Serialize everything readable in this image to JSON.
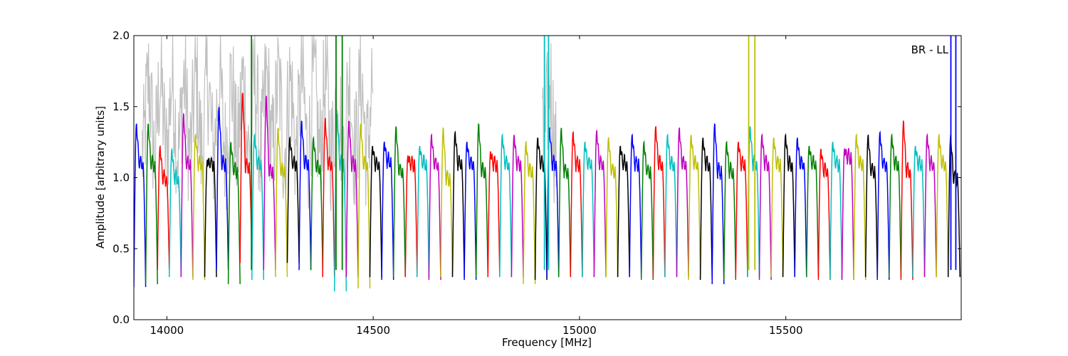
{
  "chart_data": {
    "type": "line",
    "title": "",
    "annotation": "BR - LL",
    "xlabel": "Frequency [MHz]",
    "ylabel": "Amplitude [arbitrary units]",
    "xlim": [
      13920,
      15925
    ],
    "ylim": [
      0.0,
      2.0
    ],
    "xticks": [
      14000,
      14500,
      15000,
      15500
    ],
    "yticks": [
      0.0,
      0.5,
      1.0,
      1.5,
      2.0
    ],
    "xtick_labels": [
      "14000",
      "14500",
      "15000",
      "15500"
    ],
    "ytick_labels": [
      "0.0",
      "0.5",
      "1.0",
      "1.5",
      "2.0"
    ],
    "grid": false,
    "legend": "none",
    "palette": [
      "#0000ff",
      "#008000",
      "#ff0000",
      "#00bfbf",
      "#bf00bf",
      "#bfbf00",
      "#000000"
    ],
    "noise_color": "#c0c0c0",
    "channel_width_mhz": 28.6,
    "channels": {
      "start": 13920,
      "count": 70,
      "peaks": [
        1.38,
        1.38,
        1.22,
        1.2,
        1.45,
        1.3,
        1.12,
        1.5,
        1.25,
        1.6,
        1.3,
        1.58,
        1.35,
        1.28,
        1.4,
        1.28,
        1.42,
        1.45,
        1.4,
        1.38,
        1.22,
        1.25,
        1.36,
        1.15,
        1.22,
        1.3,
        1.35,
        1.32,
        1.25,
        1.38,
        1.18,
        1.3,
        1.3,
        1.25,
        1.28,
        1.35,
        1.35,
        1.32,
        1.25,
        1.33,
        1.28,
        1.22,
        1.3,
        1.25,
        1.36,
        1.3,
        1.35,
        1.3,
        1.28,
        1.38,
        1.25,
        1.25,
        1.36,
        1.3,
        1.28,
        1.3,
        1.28,
        1.22,
        1.2,
        1.25,
        1.2,
        1.3,
        1.3,
        1.32,
        1.3,
        1.4,
        1.22,
        1.3,
        1.3,
        1.3
      ],
      "mids": [
        1.1,
        1.1,
        1.0,
        1.0,
        1.1,
        1.1,
        1.1,
        1.1,
        1.05,
        1.08,
        1.1,
        1.05,
        1.05,
        1.1,
        1.1,
        1.08,
        1.1,
        1.1,
        1.1,
        1.1,
        1.1,
        1.12,
        1.05,
        1.1,
        1.1,
        1.1,
        1.0,
        1.1,
        1.1,
        1.05,
        1.1,
        1.1,
        1.1,
        1.05,
        1.1,
        1.1,
        1.05,
        1.1,
        1.1,
        1.1,
        1.05,
        1.1,
        1.1,
        1.05,
        1.1,
        1.1,
        1.1,
        1.1,
        1.1,
        1.05,
        1.05,
        1.1,
        1.1,
        1.1,
        1.1,
        1.1,
        1.1,
        1.1,
        1.05,
        1.1,
        1.15,
        1.1,
        1.05,
        1.1,
        1.1,
        1.05,
        1.1,
        1.1,
        1.1,
        1.0
      ],
      "troughs": [
        0.23,
        0.25,
        0.35,
        0.3,
        0.3,
        0.28,
        0.3,
        0.35,
        0.25,
        0.4,
        0.28,
        0.35,
        0.3,
        0.4,
        0.35,
        0.35,
        0.3,
        0.2,
        0.3,
        0.22,
        0.3,
        0.28,
        0.3,
        0.3,
        0.3,
        0.28,
        0.3,
        0.3,
        0.28,
        0.3,
        0.3,
        0.3,
        0.3,
        0.25,
        0.28,
        0.3,
        0.3,
        0.3,
        0.3,
        0.3,
        0.3,
        0.3,
        0.3,
        0.28,
        0.3,
        0.3,
        0.3,
        0.28,
        0.28,
        0.25,
        0.28,
        0.3,
        0.3,
        0.28,
        0.3,
        0.3,
        0.3,
        0.3,
        0.28,
        0.28,
        0.28,
        0.28,
        0.3,
        0.28,
        0.3,
        0.28,
        0.3,
        0.3,
        0.3,
        0.3
      ]
    },
    "noise_region": {
      "x_range": [
        13940,
        14500
      ],
      "max": 2.0
    },
    "noise_region_2": {
      "x_range": [
        14910,
        14945
      ],
      "max": 2.0
    },
    "spikes": [
      {
        "x": 14205,
        "color": "#008000",
        "top": 2.0
      },
      {
        "x": 14410,
        "color": "#008000",
        "top": 2.0
      },
      {
        "x": 14425,
        "color": "#008000",
        "top": 2.0
      },
      {
        "x": 14915,
        "color": "#00bfbf",
        "top": 2.0
      },
      {
        "x": 14925,
        "color": "#00bfbf",
        "top": 2.0
      },
      {
        "x": 15410,
        "color": "#bfbf00",
        "top": 2.0
      },
      {
        "x": 15425,
        "color": "#bfbf00",
        "top": 2.0
      },
      {
        "x": 15900,
        "color": "#0000ff",
        "top": 2.0
      },
      {
        "x": 15912,
        "color": "#0000ff",
        "top": 2.0
      }
    ]
  }
}
